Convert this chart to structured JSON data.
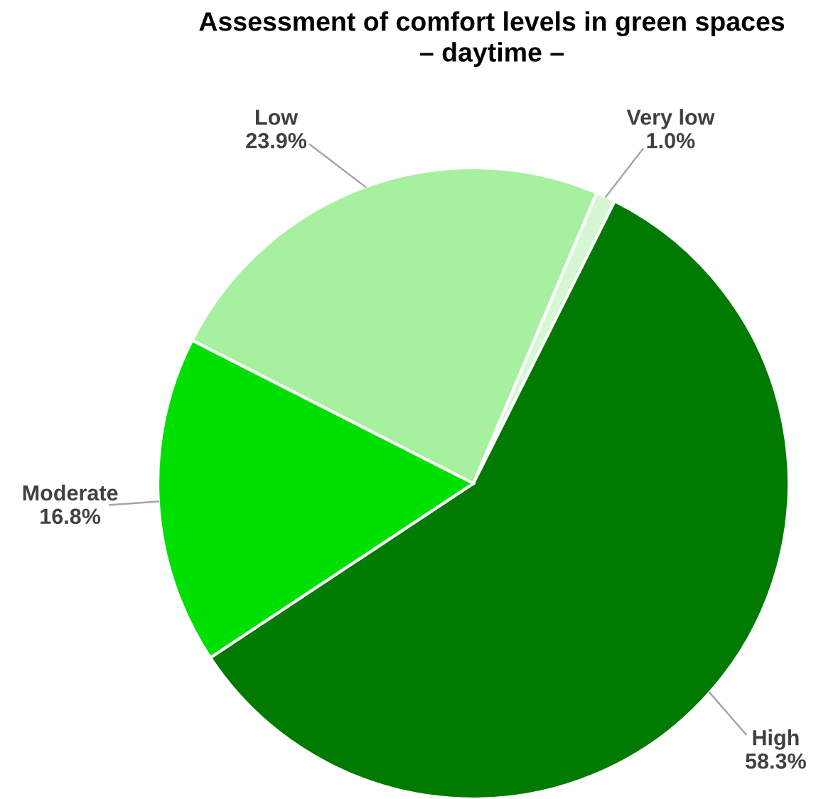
{
  "chart_data": {
    "type": "pie",
    "title": "Assessment of comfort levels in green spaces\n– daytime –",
    "categories": [
      "Very low",
      "High",
      "Moderate",
      "Low"
    ],
    "values": [
      1.0,
      58.3,
      16.8,
      23.9
    ],
    "value_labels": [
      "1.0%",
      "58.3%",
      "16.8%",
      "23.9%"
    ],
    "colors": [
      "#d6f7d4",
      "#007a00",
      "#00e000",
      "#a6f0a0"
    ],
    "legend": false
  }
}
